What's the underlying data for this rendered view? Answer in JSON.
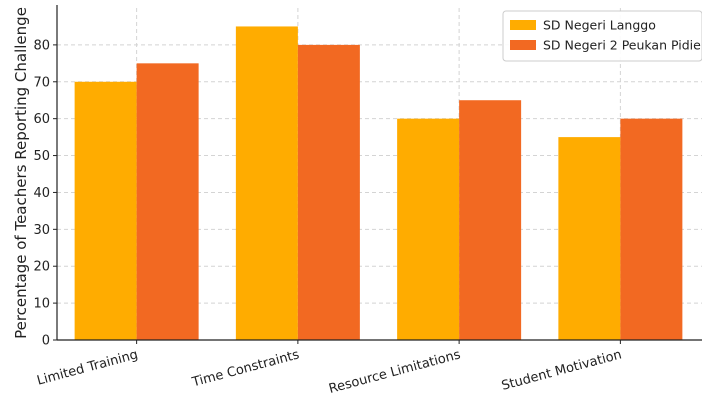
{
  "chart_data": {
    "type": "bar",
    "title": "",
    "xlabel": "",
    "ylabel": "Percentage of Teachers Reporting Challenge",
    "categories": [
      "Limited Training",
      "Time Constraints",
      "Resource Limitations",
      "Student Motivation"
    ],
    "series": [
      {
        "name": "SD Negeri Langgo",
        "values": [
          70,
          85,
          60,
          55
        ],
        "color": "#ffac00"
      },
      {
        "name": "SD Negeri 2 Peukan Pidie",
        "values": [
          75,
          80,
          65,
          60
        ],
        "color": "#f26922"
      }
    ],
    "ylim": [
      0,
      90
    ],
    "yticks": [
      0,
      10,
      20,
      30,
      40,
      50,
      60,
      70,
      80
    ],
    "grid": true,
    "legend_position": "top-right"
  }
}
